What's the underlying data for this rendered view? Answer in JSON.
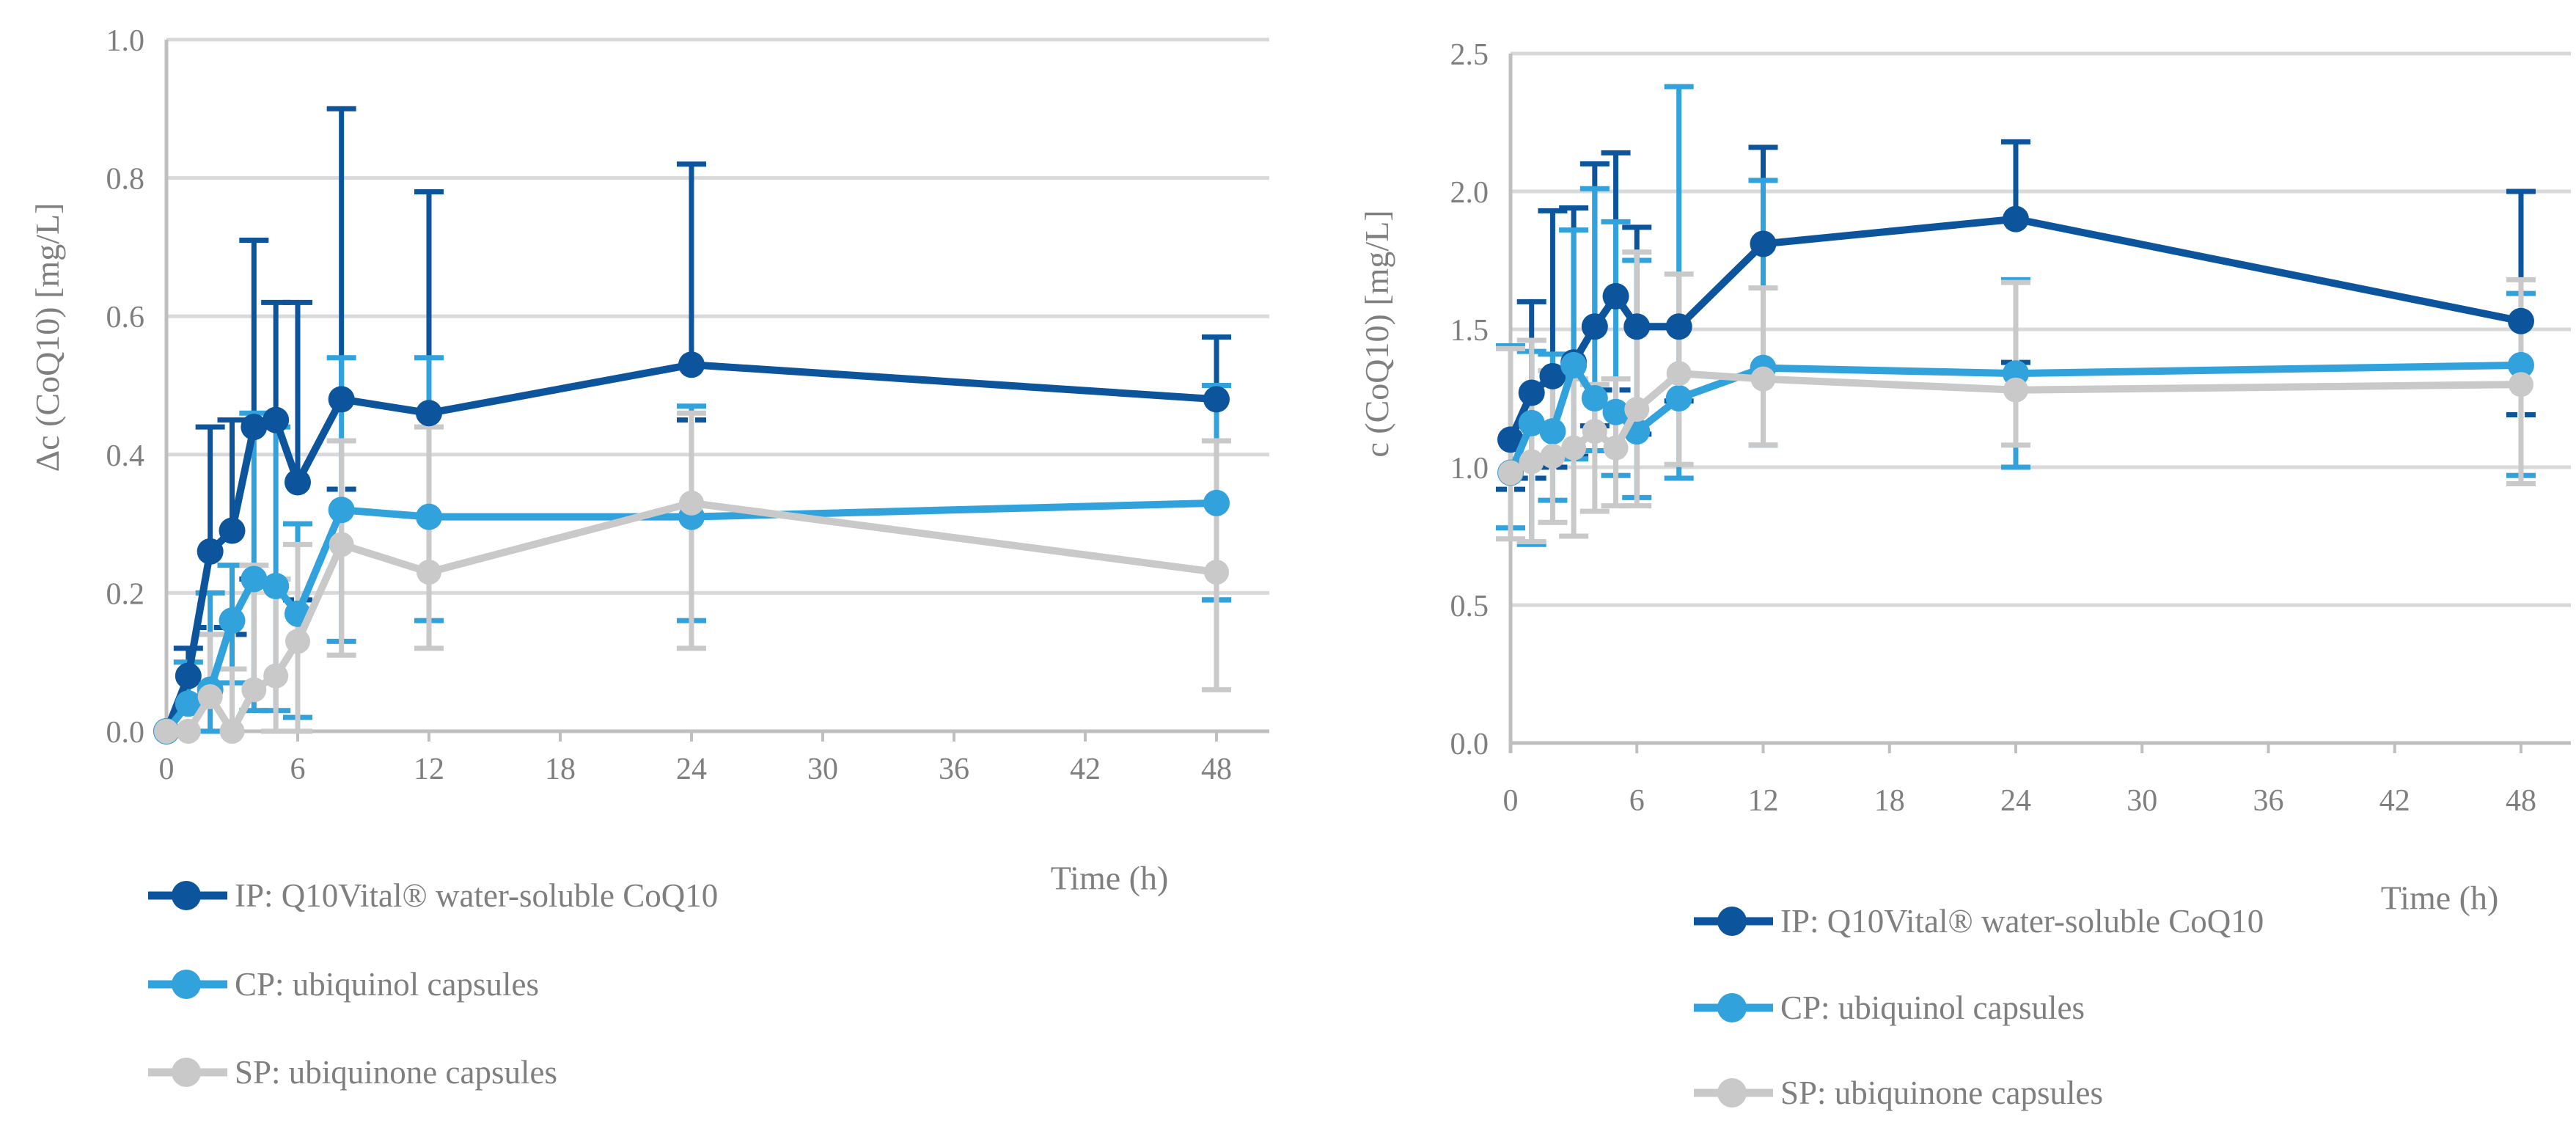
{
  "colors": {
    "ip": "#0c549c",
    "cp": "#31a2dc",
    "sp": "#c9c9c9",
    "grid": "#d9d9d9",
    "axis": "#bfbfbf",
    "text": "#7f7f7f"
  },
  "chart_data": [
    {
      "type": "line",
      "title": "",
      "ylabel": "Δc (CoQ10) [mg/L]",
      "xlabel": "Time (h)",
      "x": [
        0,
        1,
        2,
        3,
        4,
        5,
        6,
        8,
        12,
        24,
        48
      ],
      "xticks": [
        "0",
        "6",
        "12",
        "18",
        "24",
        "30",
        "36",
        "42",
        "48"
      ],
      "yticks": [
        "0.0",
        "0.2",
        "0.4",
        "0.6",
        "0.8",
        "1.0"
      ],
      "ylim": [
        0.0,
        1.0
      ],
      "xlim": [
        0,
        48
      ],
      "grid": "horizontal",
      "legend_position": "bottom-left",
      "series": [
        {
          "id": "ip",
          "name": "IP: Q10Vital® water-soluble CoQ10",
          "color_key": "ip",
          "values": [
            0.0,
            0.08,
            0.26,
            0.29,
            0.44,
            0.45,
            0.36,
            0.48,
            0.46,
            0.53,
            0.48
          ],
          "err_up": [
            null,
            0.12,
            0.44,
            0.45,
            0.71,
            0.62,
            0.62,
            0.9,
            0.78,
            0.82,
            0.57
          ],
          "err_lo": [
            null,
            0.03,
            0.15,
            0.14,
            0.22,
            0.22,
            0.19,
            0.35,
            null,
            0.45,
            0.19
          ],
          "lower_cap_style": "dashed-float"
        },
        {
          "id": "cp",
          "name": "CP: ubiquinol capsules",
          "color_key": "cp",
          "values": [
            0.0,
            0.04,
            0.06,
            0.16,
            0.22,
            0.21,
            0.17,
            0.32,
            0.31,
            0.31,
            0.33
          ],
          "err_up": [
            null,
            0.1,
            0.2,
            0.24,
            0.46,
            0.44,
            0.3,
            0.54,
            0.54,
            0.47,
            0.5
          ],
          "err_lo": [
            null,
            null,
            0.0,
            0.07,
            0.03,
            0.03,
            0.02,
            0.13,
            0.16,
            0.16,
            0.19
          ],
          "lower_cap_style": "solid"
        },
        {
          "id": "sp",
          "name": "SP: ubiquinone capsules",
          "color_key": "sp",
          "values": [
            0.0,
            0.0,
            0.05,
            0.0,
            0.06,
            0.08,
            0.13,
            0.27,
            0.23,
            0.33,
            0.23
          ],
          "err_up": [
            null,
            null,
            0.14,
            0.09,
            0.24,
            0.22,
            0.27,
            0.42,
            0.44,
            0.46,
            0.42
          ],
          "err_lo": [
            null,
            null,
            null,
            null,
            null,
            0.0,
            0.0,
            0.11,
            0.12,
            0.12,
            0.06
          ],
          "lower_cap_style": "solid"
        }
      ]
    },
    {
      "type": "line",
      "title": "",
      "ylabel": "c (CoQ10) [mg/L]",
      "xlabel": "Time (h)",
      "x": [
        0,
        1,
        2,
        3,
        4,
        5,
        6,
        8,
        12,
        24,
        48
      ],
      "xticks": [
        "0",
        "6",
        "12",
        "18",
        "24",
        "30",
        "36",
        "42",
        "48"
      ],
      "yticks": [
        "0.0",
        "0.5",
        "1.0",
        "1.5",
        "2.0",
        "2.5"
      ],
      "ylim": [
        0.0,
        2.5
      ],
      "xlim": [
        0,
        48
      ],
      "grid": "horizontal",
      "legend_position": "bottom-right",
      "series": [
        {
          "id": "ip",
          "name": "IP: Q10Vital® water-soluble CoQ10",
          "color_key": "ip",
          "values": [
            1.1,
            1.27,
            1.33,
            1.38,
            1.51,
            1.62,
            1.51,
            1.51,
            1.81,
            1.9,
            1.53
          ],
          "err_up": [
            1.44,
            1.6,
            1.93,
            1.94,
            2.1,
            2.14,
            1.87,
            null,
            2.16,
            2.18,
            2.0
          ],
          "err_lo": [
            0.92,
            0.96,
            1.0,
            1.04,
            1.15,
            1.28,
            1.12,
            1.24,
            null,
            1.38,
            1.19
          ],
          "lower_cap_style": "dashed-float"
        },
        {
          "id": "cp",
          "name": "CP: ubiquinol capsules",
          "color_key": "cp",
          "values": [
            0.98,
            1.16,
            1.13,
            1.37,
            1.25,
            1.2,
            1.13,
            1.25,
            1.36,
            1.34,
            1.37
          ],
          "err_up": [
            1.44,
            1.42,
            1.41,
            1.86,
            2.01,
            1.89,
            1.75,
            2.38,
            2.04,
            1.68,
            1.63
          ],
          "err_lo": [
            0.78,
            0.72,
            0.88,
            1.03,
            1.06,
            0.97,
            0.89,
            0.96,
            1.08,
            1.0,
            0.97
          ],
          "lower_cap_style": "solid"
        },
        {
          "id": "sp",
          "name": "SP: ubiquinone capsules",
          "color_key": "sp",
          "values": [
            0.98,
            1.02,
            1.04,
            1.07,
            1.13,
            1.07,
            1.21,
            1.34,
            1.32,
            1.28,
            1.3
          ],
          "err_up": [
            1.43,
            1.46,
            1.35,
            1.32,
            1.3,
            1.32,
            1.78,
            1.7,
            1.65,
            1.67,
            1.68
          ],
          "err_lo": [
            0.74,
            0.73,
            0.8,
            0.75,
            0.84,
            0.86,
            0.86,
            1.01,
            1.08,
            1.08,
            0.94
          ],
          "lower_cap_style": "solid"
        }
      ]
    }
  ]
}
